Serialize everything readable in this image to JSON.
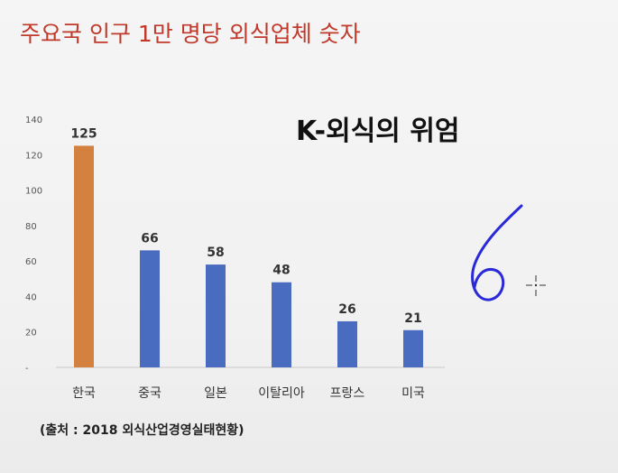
{
  "slide": {
    "title": "주요국 인구 1만 명당 외식업체 숫자",
    "headline": "K-외식의 위엄",
    "source": "(출처 : 2018 외식산업경영실태현황)",
    "handwriting": "6"
  },
  "chart_data": {
    "type": "bar",
    "title": "",
    "categories": [
      "한국",
      "중국",
      "일본",
      "이탈리아",
      "프랑스",
      "미국"
    ],
    "values": [
      125,
      66,
      58,
      48,
      26,
      21
    ],
    "value_labels": [
      "125",
      "66",
      "58",
      "48",
      "26",
      "21"
    ],
    "colors": [
      "#d4813f",
      "#4a6cc0",
      "#4a6cc0",
      "#4a6cc0",
      "#4a6cc0",
      "#4a6cc0"
    ],
    "ylim": [
      0,
      140
    ],
    "y_ticks": [
      0,
      20,
      40,
      60,
      80,
      100,
      120,
      140
    ],
    "y_tick_labels": [
      "-",
      "20",
      "40",
      "60",
      "80",
      "100",
      "120",
      "140"
    ],
    "xlabel": "",
    "ylabel": "",
    "grid": false,
    "legend": "none"
  }
}
